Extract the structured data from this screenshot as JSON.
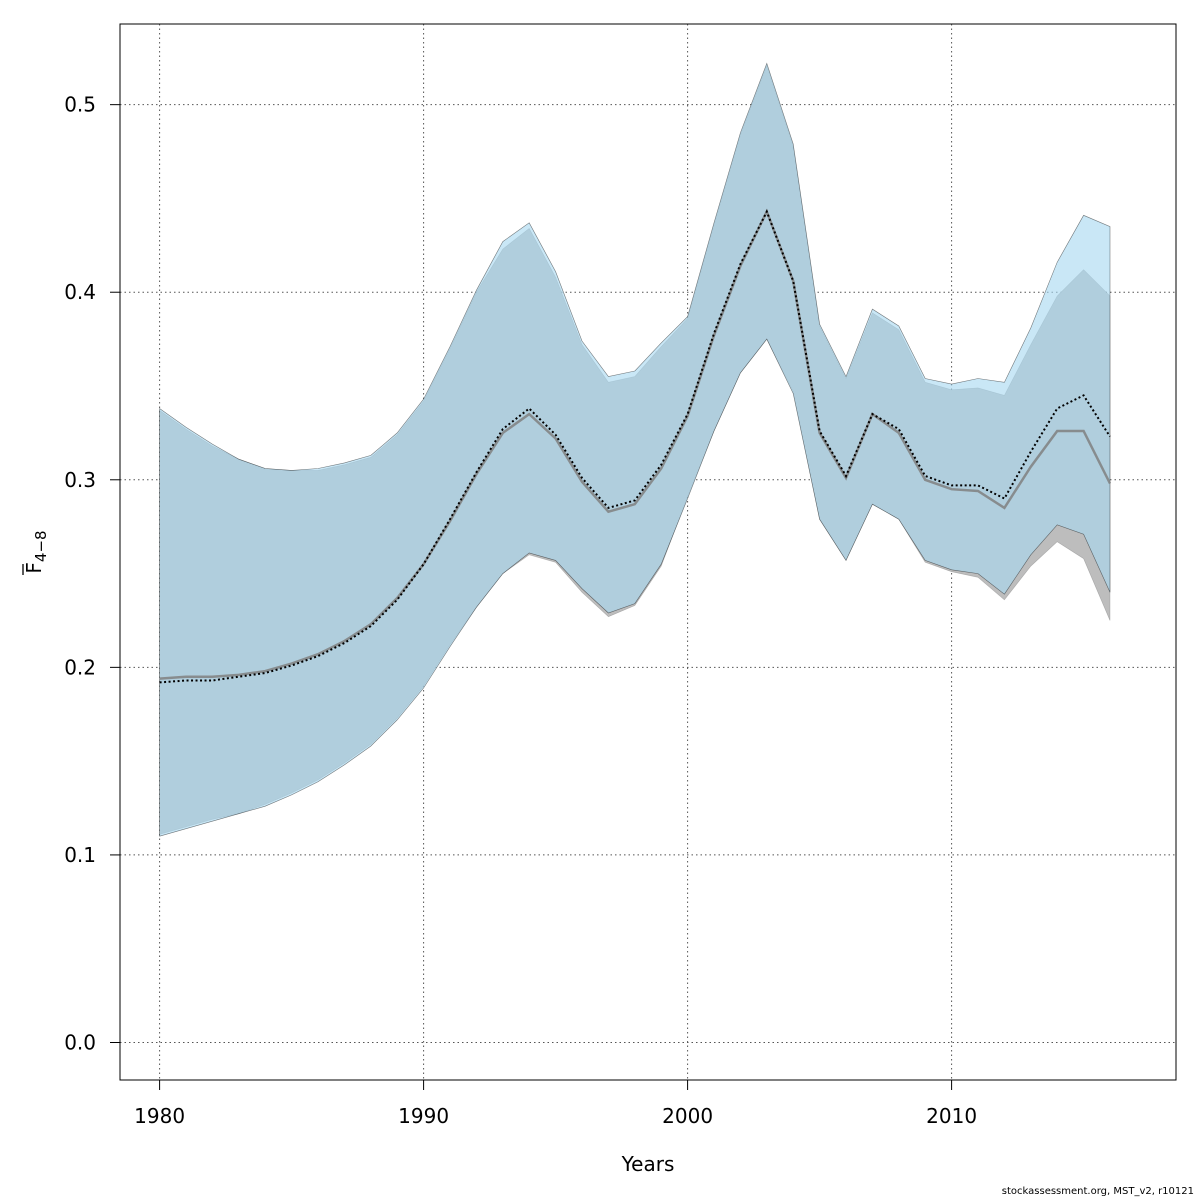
{
  "chart_data": {
    "type": "area",
    "xlabel": "Years",
    "ylabel_main": "F",
    "ylabel_sub": "4−8",
    "xlim": [
      1978.5,
      2018.5
    ],
    "ylim": [
      -0.02,
      0.543
    ],
    "x_ticks": [
      1980,
      1990,
      2000,
      2010
    ],
    "x_tick_labels": [
      "1980",
      "1990",
      "2000",
      "2010"
    ],
    "y_ticks": [
      0.0,
      0.1,
      0.2,
      0.3,
      0.4,
      0.5
    ],
    "y_tick_labels": [
      "0.0",
      "0.1",
      "0.2",
      "0.3",
      "0.4",
      "0.5"
    ],
    "grid": true,
    "x": [
      1980,
      1981,
      1982,
      1983,
      1984,
      1985,
      1986,
      1987,
      1988,
      1989,
      1990,
      1991,
      1992,
      1993,
      1994,
      1995,
      1996,
      1997,
      1998,
      1999,
      2000,
      2001,
      2002,
      2003,
      2004,
      2005,
      2006,
      2007,
      2008,
      2009,
      2010,
      2011,
      2012,
      2013,
      2014,
      2015,
      2016
    ],
    "series": [
      {
        "color": "#808080",
        "fill": "#bdbdbd",
        "line_style": "solid",
        "upper": [
          0.337,
          0.327,
          0.318,
          0.311,
          0.306,
          0.305,
          0.305,
          0.308,
          0.312,
          0.324,
          0.342,
          0.37,
          0.4,
          0.423,
          0.434,
          0.408,
          0.372,
          0.352,
          0.355,
          0.371,
          0.386,
          0.436,
          0.484,
          0.521,
          0.478,
          0.382,
          0.354,
          0.389,
          0.38,
          0.352,
          0.348,
          0.349,
          0.345,
          0.372,
          0.398,
          0.412,
          0.398
        ],
        "median": [
          0.194,
          0.195,
          0.195,
          0.196,
          0.198,
          0.202,
          0.207,
          0.214,
          0.223,
          0.237,
          0.255,
          0.278,
          0.303,
          0.325,
          0.335,
          0.322,
          0.299,
          0.283,
          0.287,
          0.306,
          0.334,
          0.377,
          0.414,
          0.443,
          0.406,
          0.325,
          0.301,
          0.335,
          0.325,
          0.3,
          0.295,
          0.294,
          0.285,
          0.307,
          0.326,
          0.326,
          0.298
        ],
        "lower": [
          0.111,
          0.115,
          0.119,
          0.122,
          0.127,
          0.133,
          0.14,
          0.149,
          0.159,
          0.173,
          0.19,
          0.212,
          0.232,
          0.25,
          0.26,
          0.256,
          0.24,
          0.227,
          0.233,
          0.254,
          0.291,
          0.326,
          0.357,
          0.375,
          0.347,
          0.279,
          0.257,
          0.287,
          0.279,
          0.256,
          0.251,
          0.248,
          0.236,
          0.254,
          0.267,
          0.258,
          0.225
        ]
      },
      {
        "color": "#000000",
        "fill": "#a8d8f0",
        "line_style": "dotted",
        "upper": [
          0.338,
          0.328,
          0.319,
          0.311,
          0.306,
          0.305,
          0.306,
          0.309,
          0.313,
          0.325,
          0.343,
          0.371,
          0.401,
          0.427,
          0.437,
          0.411,
          0.374,
          0.355,
          0.358,
          0.373,
          0.387,
          0.437,
          0.485,
          0.522,
          0.479,
          0.383,
          0.355,
          0.391,
          0.382,
          0.354,
          0.351,
          0.354,
          0.352,
          0.381,
          0.416,
          0.441,
          0.435
        ],
        "median": [
          0.192,
          0.193,
          0.193,
          0.195,
          0.197,
          0.201,
          0.206,
          0.213,
          0.222,
          0.236,
          0.255,
          0.279,
          0.304,
          0.327,
          0.338,
          0.324,
          0.301,
          0.285,
          0.289,
          0.308,
          0.335,
          0.378,
          0.415,
          0.443,
          0.406,
          0.326,
          0.302,
          0.335,
          0.327,
          0.302,
          0.297,
          0.297,
          0.29,
          0.315,
          0.338,
          0.345,
          0.323
        ],
        "lower": [
          0.11,
          0.114,
          0.118,
          0.122,
          0.126,
          0.132,
          0.139,
          0.148,
          0.158,
          0.172,
          0.189,
          0.211,
          0.232,
          0.25,
          0.261,
          0.257,
          0.242,
          0.229,
          0.234,
          0.255,
          0.29,
          0.326,
          0.357,
          0.375,
          0.346,
          0.279,
          0.257,
          0.287,
          0.279,
          0.257,
          0.252,
          0.25,
          0.239,
          0.26,
          0.276,
          0.271,
          0.24
        ]
      }
    ]
  },
  "footer": "stockassessment.org, MST_v2, r10121"
}
